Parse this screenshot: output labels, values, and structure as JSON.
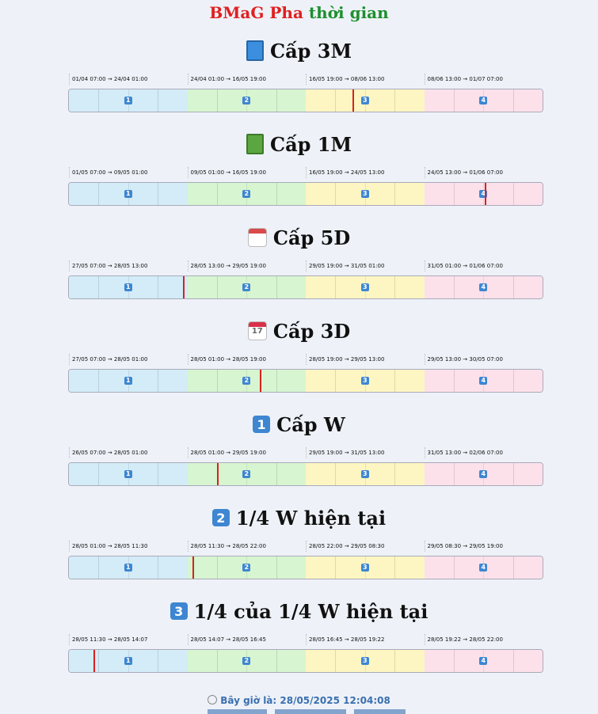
{
  "app_title": {
    "part1": "BMaG",
    "part2": "Pha",
    "part3": "thời gian"
  },
  "phase_numbers": [
    "1",
    "2",
    "3",
    "4"
  ],
  "levels": [
    {
      "title": "Cấp 3M",
      "icon": "blue-book-icon",
      "ranges": [
        "01/04 07:00 → 24/04 01:00",
        "24/04 01:00 → 16/05 19:00",
        "16/05 19:00 → 08/06 13:00",
        "08/06 13:00 → 01/07 07:00"
      ],
      "current_position": 0.6
    },
    {
      "title": "Cấp 1M",
      "icon": "green-book-icon",
      "ranges": [
        "01/05 07:00 → 09/05 01:00",
        "09/05 01:00 → 16/05 19:00",
        "16/05 19:00 → 24/05 13:00",
        "24/05 13:00 → 01/06 07:00"
      ],
      "current_position": 0.88
    },
    {
      "title": "Cấp 5D",
      "icon": "calendar-icon",
      "ranges": [
        "27/05 07:00 → 28/05 13:00",
        "28/05 13:00 → 29/05 19:00",
        "29/05 19:00 → 31/05 01:00",
        "31/05 01:00 → 01/06 07:00"
      ],
      "current_position": 0.243
    },
    {
      "title": "Cấp 3D",
      "icon": "calendar-17-icon",
      "ranges": [
        "27/05 07:00 → 28/05 01:00",
        "28/05 01:00 → 28/05 19:00",
        "28/05 19:00 → 29/05 13:00",
        "29/05 13:00 → 30/05 07:00"
      ],
      "current_position": 0.405
    },
    {
      "title": "Cấp W",
      "icon": "number-1-icon",
      "ranges": [
        "26/05 07:00 → 28/05 01:00",
        "28/05 01:00 → 29/05 19:00",
        "29/05 19:00 → 31/05 13:00",
        "31/05 13:00 → 02/06 07:00"
      ],
      "current_position": 0.314
    },
    {
      "title": "1/4 W hiện tại",
      "icon": "number-2-icon",
      "ranges": [
        "28/05 01:00 → 28/05 11:30",
        "28/05 11:30 → 28/05 22:00",
        "28/05 22:00 → 29/05 08:30",
        "29/05 08:30 → 29/05 19:00"
      ],
      "current_position": 0.262
    },
    {
      "title": "1/4 của 1/4 W hiện tại",
      "icon": "number-3-icon",
      "ranges": [
        "28/05 11:30 → 28/05 14:07",
        "28/05 14:07 → 28/05 16:45",
        "28/05 16:45 → 28/05 19:22",
        "28/05 19:22 → 28/05 22:00"
      ],
      "current_position": 0.054
    }
  ],
  "current_time_label": "Bây giờ là: 28/05/2025 12:04:08"
}
